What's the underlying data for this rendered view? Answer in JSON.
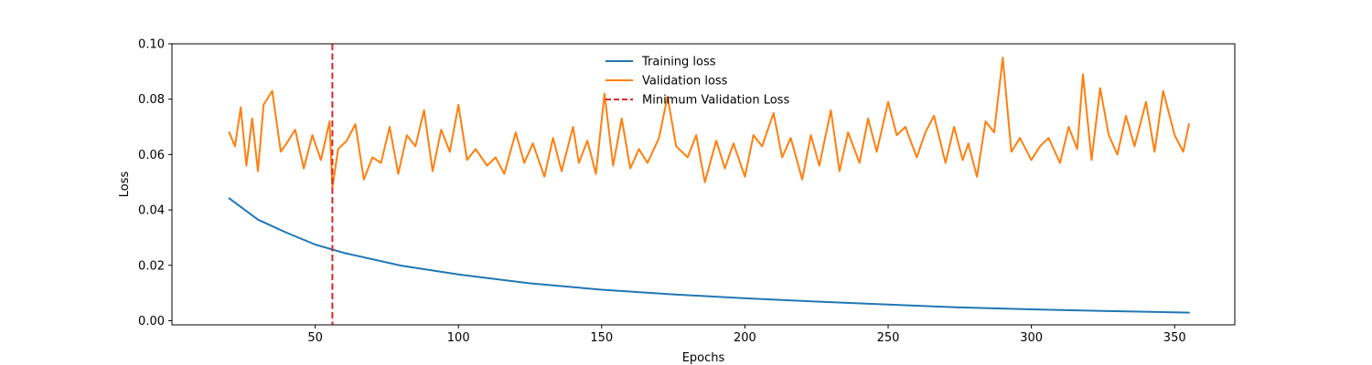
{
  "chart_data": {
    "type": "line",
    "title": "",
    "xlabel": "Epochs",
    "ylabel": "Loss",
    "xlim": [
      0,
      371
    ],
    "ylim": [
      -0.0015,
      0.1
    ],
    "x_ticks": [
      50,
      100,
      150,
      200,
      250,
      300,
      350
    ],
    "x_tick_labels": [
      "50",
      "100",
      "150",
      "200",
      "250",
      "300",
      "350"
    ],
    "y_ticks": [
      0.0,
      0.02,
      0.04,
      0.06,
      0.08,
      0.1
    ],
    "y_tick_labels": [
      "0.00",
      "0.02",
      "0.04",
      "0.06",
      "0.08",
      "0.10"
    ],
    "grid": false,
    "legend_position": "top-center",
    "series": [
      {
        "name": "Training loss",
        "color": "#1f77b4",
        "style": "solid",
        "x": [
          20,
          30,
          40,
          50,
          60,
          80,
          100,
          125,
          150,
          175,
          200,
          225,
          250,
          275,
          300,
          325,
          355
        ],
        "values": [
          0.0442,
          0.0365,
          0.0318,
          0.0275,
          0.0245,
          0.0199,
          0.0167,
          0.0135,
          0.0112,
          0.0095,
          0.0081,
          0.0069,
          0.0058,
          0.0048,
          0.0041,
          0.0035,
          0.0029
        ]
      },
      {
        "name": "Validation loss",
        "color": "#ff7f0e",
        "style": "solid",
        "x": [
          20,
          22,
          24,
          26,
          28,
          30,
          32,
          35,
          38,
          40,
          43,
          46,
          49,
          52,
          55,
          56,
          58,
          61,
          64,
          67,
          70,
          73,
          76,
          79,
          82,
          85,
          88,
          91,
          94,
          97,
          100,
          103,
          106,
          110,
          113,
          116,
          120,
          123,
          126,
          130,
          133,
          136,
          140,
          142,
          145,
          148,
          151,
          154,
          157,
          160,
          163,
          166,
          170,
          173,
          176,
          180,
          183,
          186,
          190,
          193,
          196,
          200,
          203,
          206,
          210,
          213,
          216,
          220,
          223,
          226,
          230,
          233,
          236,
          240,
          243,
          246,
          250,
          253,
          256,
          260,
          263,
          266,
          270,
          273,
          276,
          278,
          281,
          284,
          287,
          290,
          293,
          296,
          300,
          303,
          306,
          310,
          313,
          316,
          318,
          321,
          324,
          327,
          330,
          333,
          336,
          340,
          343,
          346,
          350,
          353,
          355
        ],
        "values": [
          0.068,
          0.063,
          0.077,
          0.056,
          0.073,
          0.054,
          0.078,
          0.083,
          0.061,
          0.064,
          0.069,
          0.055,
          0.067,
          0.058,
          0.072,
          0.048,
          0.062,
          0.065,
          0.071,
          0.051,
          0.059,
          0.057,
          0.07,
          0.053,
          0.067,
          0.063,
          0.076,
          0.054,
          0.069,
          0.061,
          0.078,
          0.058,
          0.062,
          0.056,
          0.059,
          0.053,
          0.068,
          0.057,
          0.064,
          0.052,
          0.066,
          0.054,
          0.07,
          0.057,
          0.065,
          0.053,
          0.082,
          0.056,
          0.073,
          0.055,
          0.062,
          0.057,
          0.066,
          0.081,
          0.063,
          0.059,
          0.067,
          0.05,
          0.065,
          0.055,
          0.064,
          0.052,
          0.067,
          0.063,
          0.075,
          0.059,
          0.066,
          0.051,
          0.067,
          0.056,
          0.076,
          0.054,
          0.068,
          0.057,
          0.073,
          0.061,
          0.079,
          0.067,
          0.07,
          0.059,
          0.068,
          0.074,
          0.057,
          0.07,
          0.058,
          0.064,
          0.052,
          0.072,
          0.068,
          0.095,
          0.061,
          0.066,
          0.058,
          0.063,
          0.066,
          0.057,
          0.07,
          0.062,
          0.089,
          0.058,
          0.084,
          0.067,
          0.06,
          0.074,
          0.063,
          0.079,
          0.061,
          0.083,
          0.067,
          0.061,
          0.071
        ]
      }
    ],
    "vlines": [
      {
        "name": "Minimum Validation Loss",
        "x": 56,
        "color": "#d62728",
        "style": "dashed"
      }
    ]
  }
}
